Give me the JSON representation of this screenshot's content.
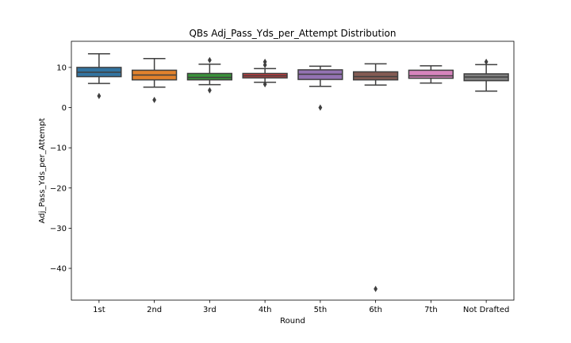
{
  "chart_data": {
    "type": "box",
    "title": "QBs Adj_Pass_Yds_per_Attempt Distribution",
    "xlabel": "Round",
    "ylabel": "Adj_Pass_Yds_per_Attempt",
    "ylim": [
      -47.9,
      16.5
    ],
    "yticks": [
      10,
      0,
      -10,
      -20,
      -30,
      -40
    ],
    "ytick_labels": [
      "10",
      "0",
      "−10",
      "−20",
      "−30",
      "−40"
    ],
    "grid": false,
    "categories": [
      "1st",
      "2nd",
      "3rd",
      "4th",
      "5th",
      "6th",
      "7th",
      "Not Drafted"
    ],
    "colors": [
      "#3274a1",
      "#e1812c",
      "#3a923a",
      "#c03d3e",
      "#9372b2",
      "#845b53",
      "#d684bd",
      "#7f7f7f"
    ],
    "boxes": [
      {
        "q1": 7.7,
        "median": 8.8,
        "q3": 10.0,
        "whislo": 6.0,
        "whishi": 13.4,
        "outliers": [
          2.9
        ]
      },
      {
        "q1": 6.9,
        "median": 8.1,
        "q3": 9.3,
        "whislo": 5.1,
        "whishi": 12.2,
        "outliers": [
          1.9
        ]
      },
      {
        "q1": 6.9,
        "median": 7.5,
        "q3": 8.5,
        "whislo": 5.7,
        "whishi": 10.8,
        "outliers": [
          11.8,
          4.3
        ]
      },
      {
        "q1": 7.4,
        "median": 7.9,
        "q3": 8.5,
        "whislo": 6.3,
        "whishi": 9.7,
        "outliers": [
          11.4,
          10.6,
          5.8
        ]
      },
      {
        "q1": 7.0,
        "median": 8.3,
        "q3": 9.4,
        "whislo": 5.3,
        "whishi": 10.3,
        "outliers": [
          0.0
        ]
      },
      {
        "q1": 6.9,
        "median": 7.7,
        "q3": 8.9,
        "whislo": 5.6,
        "whishi": 10.9,
        "outliers": [
          -45.1
        ]
      },
      {
        "q1": 7.3,
        "median": 7.9,
        "q3": 9.3,
        "whislo": 6.1,
        "whishi": 10.4,
        "outliers": []
      },
      {
        "q1": 6.7,
        "median": 7.6,
        "q3": 8.4,
        "whislo": 4.1,
        "whishi": 10.7,
        "outliers": [
          11.4
        ]
      }
    ]
  }
}
